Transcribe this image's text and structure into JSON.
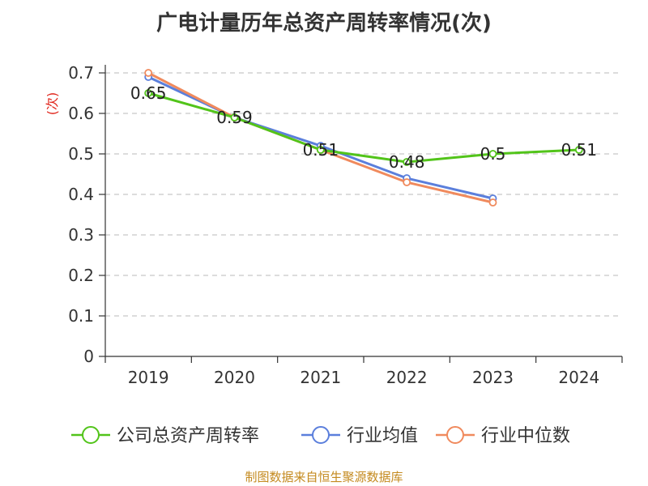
{
  "title": "广电计量历年总资产周转率情况(次)",
  "source": "制图数据来自恒生聚源数据库",
  "chart_data": {
    "type": "line",
    "title": "广电计量历年总资产周转率情况(次)",
    "ylabel": "(次)",
    "xlabel": "",
    "categories": [
      "2019",
      "2020",
      "2021",
      "2022",
      "2023",
      "2024"
    ],
    "ylim": [
      0,
      0.7
    ],
    "yticks": [
      "0",
      "0.1",
      "0.2",
      "0.3",
      "0.4",
      "0.5",
      "0.6",
      "0.7"
    ],
    "grid": "horizontal dashed",
    "legend_position": "bottom",
    "series": [
      {
        "name": "公司总资产周转率",
        "color": "#52c41a",
        "values": [
          0.65,
          0.59,
          0.51,
          0.48,
          0.5,
          0.51
        ],
        "labels": [
          "0.65",
          "0.59",
          "0.51",
          "0.48",
          "0.5",
          "0.51"
        ]
      },
      {
        "name": "行业均值",
        "color": "#5b7fdc",
        "values": [
          0.69,
          0.59,
          0.52,
          0.44,
          0.39,
          null
        ]
      },
      {
        "name": "行业中位数",
        "color": "#f08a5d",
        "values": [
          0.7,
          0.59,
          0.51,
          0.43,
          0.38,
          null
        ]
      }
    ]
  }
}
